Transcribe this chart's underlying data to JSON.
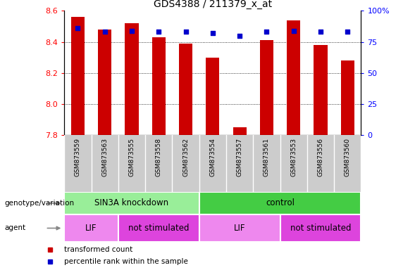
{
  "title": "GDS4388 / 211379_x_at",
  "samples": [
    "GSM873559",
    "GSM873563",
    "GSM873555",
    "GSM873558",
    "GSM873562",
    "GSM873554",
    "GSM873557",
    "GSM873561",
    "GSM873553",
    "GSM873556",
    "GSM873560"
  ],
  "bar_values": [
    8.56,
    8.48,
    8.52,
    8.43,
    8.39,
    8.3,
    7.85,
    8.41,
    8.54,
    8.38,
    8.28
  ],
  "blue_dot_values": [
    86,
    83,
    84,
    83,
    83,
    82,
    80,
    83,
    84,
    83,
    83
  ],
  "ymin": 7.8,
  "ymax": 8.6,
  "bar_color": "#cc0000",
  "dot_color": "#0000cc",
  "bar_bottom": 7.8,
  "genotype_groups": [
    {
      "label": "SIN3A knockdown",
      "start": 0,
      "end": 5,
      "color": "#99ee99"
    },
    {
      "label": "control",
      "start": 5,
      "end": 11,
      "color": "#44cc44"
    }
  ],
  "agent_groups": [
    {
      "label": "LIF",
      "start": 0,
      "end": 2,
      "color": "#ee88ee"
    },
    {
      "label": "not stimulated",
      "start": 2,
      "end": 5,
      "color": "#dd44dd"
    },
    {
      "label": "LIF",
      "start": 5,
      "end": 8,
      "color": "#ee88ee"
    },
    {
      "label": "not stimulated",
      "start": 8,
      "end": 11,
      "color": "#dd44dd"
    }
  ],
  "yticks_left": [
    7.8,
    8.0,
    8.2,
    8.4,
    8.6
  ],
  "yticks_right": [
    0,
    25,
    50,
    75,
    100
  ],
  "legend_items": [
    {
      "label": "transformed count",
      "color": "#cc0000"
    },
    {
      "label": "percentile rank within the sample",
      "color": "#0000cc"
    }
  ],
  "left_labels": [
    {
      "text": "genotype/variation",
      "row": "geno"
    },
    {
      "text": "agent",
      "row": "agent"
    }
  ]
}
